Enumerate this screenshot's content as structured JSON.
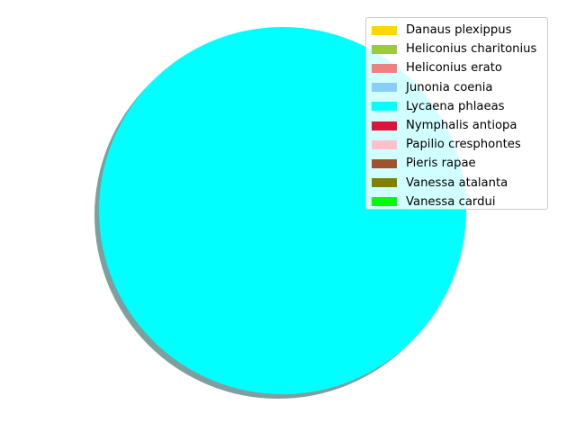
{
  "chart_data": {
    "type": "pie",
    "title": "",
    "shadow": true,
    "legend_position": "upper-right",
    "slices": [
      {
        "label": "Danaus plexippus",
        "value": 0,
        "color": "#FFD700"
      },
      {
        "label": "Heliconius charitonius",
        "value": 0,
        "color": "#9ACD32"
      },
      {
        "label": "Heliconius erato",
        "value": 0,
        "color": "#F08080"
      },
      {
        "label": "Junonia coenia",
        "value": 0,
        "color": "#87CEFA"
      },
      {
        "label": "Lycaena phlaeas",
        "value": 100,
        "color": "#00FFFF"
      },
      {
        "label": "Nymphalis antiopa",
        "value": 0,
        "color": "#DC143C"
      },
      {
        "label": "Papilio cresphontes",
        "value": 0,
        "color": "#FFC0CB"
      },
      {
        "label": "Pieris rapae",
        "value": 0,
        "color": "#A0522D"
      },
      {
        "label": "Vanessa atalanta",
        "value": 0,
        "color": "#808000"
      },
      {
        "label": "Vanessa cardui",
        "value": 0,
        "color": "#00FF00"
      }
    ]
  }
}
